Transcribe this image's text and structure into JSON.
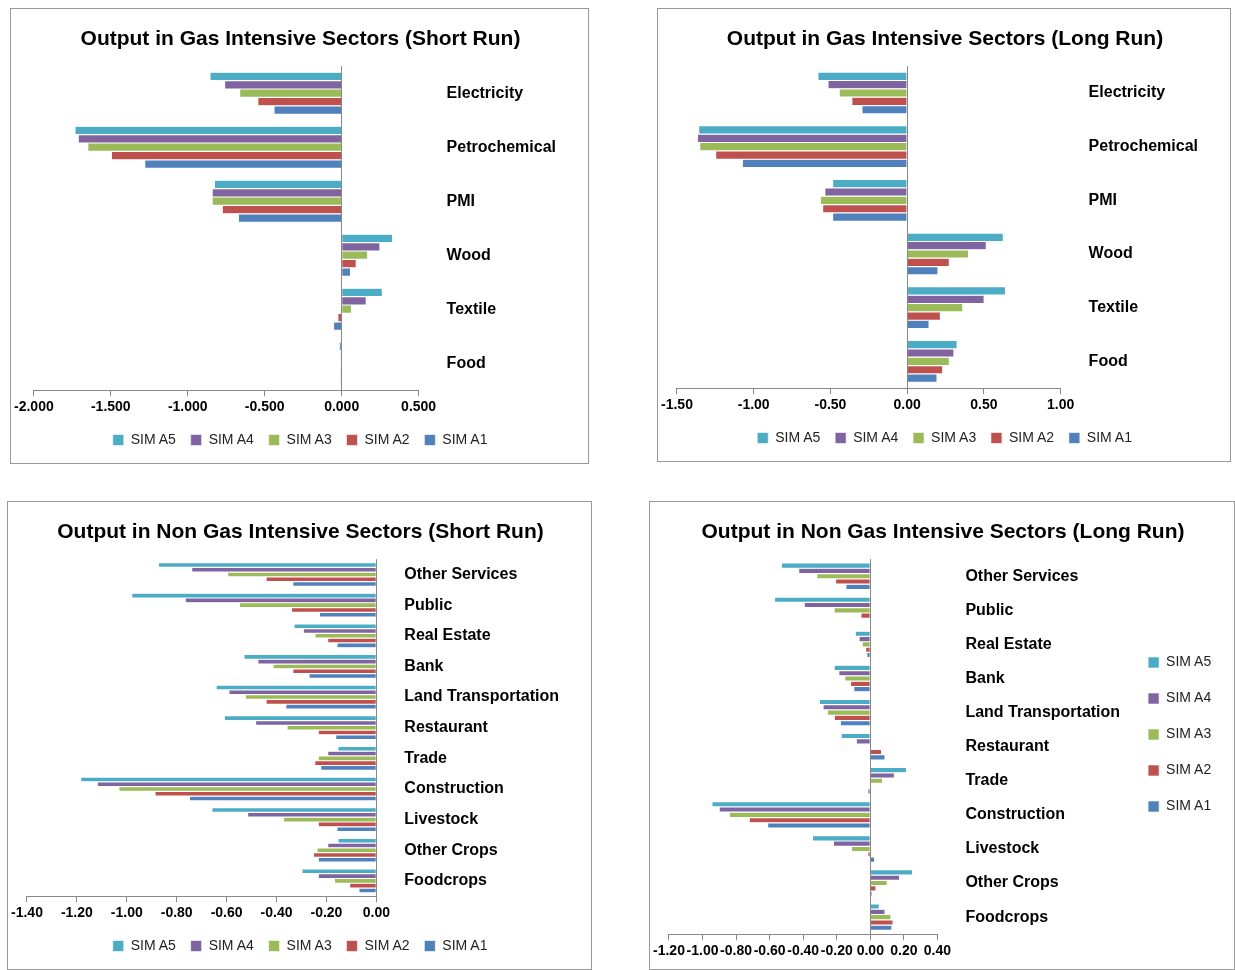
{
  "chart_data": [
    {
      "type": "bar",
      "orientation": "horizontal",
      "title": "Output in Gas Intensive Sectors (Short Run)",
      "categories": [
        "Electricity",
        "Petrochemical",
        "PMI",
        "Wood",
        "Textile",
        "Food"
      ],
      "legend": "bottom",
      "xlim": [
        -2,
        0.5
      ],
      "xticks": [
        {
          "value": -2,
          "label": "-2.000"
        },
        {
          "value": -1.5,
          "label": "-1.500"
        },
        {
          "value": -1,
          "label": "-1.000"
        },
        {
          "value": -0.5,
          "label": "-0.500"
        },
        {
          "value": 0,
          "label": "0.000"
        },
        {
          "value": 0.5,
          "label": "0.500"
        }
      ],
      "series": [
        {
          "name": "SIM A5",
          "color": "#4bacc6",
          "values": [
            -0.856,
            -1.733,
            -0.827,
            0.331,
            0.265,
            -0.016
          ]
        },
        {
          "name": "SIM A4",
          "color": "#8064a2",
          "values": [
            -0.761,
            -1.712,
            -0.842,
            0.249,
            0.16,
            -0.008
          ]
        },
        {
          "name": "SIM A3",
          "color": "#9bbb59",
          "values": [
            -0.663,
            -1.65,
            -0.842,
            0.169,
            0.064,
            -0.004
          ]
        },
        {
          "name": "SIM A2",
          "color": "#c0504d",
          "values": [
            -0.545,
            -1.496,
            -0.776,
            0.095,
            -0.025,
            -0.008
          ]
        },
        {
          "name": "SIM A1",
          "color": "#4f81bd",
          "values": [
            -0.44,
            -1.28,
            -0.671,
            0.058,
            -0.053,
            -0.008
          ]
        }
      ]
    },
    {
      "type": "bar",
      "orientation": "horizontal",
      "title": "Output in Gas Intensive Sectors (Long Run)",
      "categories": [
        "Electricity",
        "Petrochemical",
        "PMI",
        "Wood",
        "Textile",
        "Food"
      ],
      "legend": "bottom",
      "xlim": [
        -1.5,
        1
      ],
      "xticks": [
        {
          "value": -1.5,
          "label": "-1.50"
        },
        {
          "value": -1,
          "label": "-1.00"
        },
        {
          "value": -0.5,
          "label": "-0.50"
        },
        {
          "value": 0,
          "label": "0.00"
        },
        {
          "value": 0.5,
          "label": "0.50"
        },
        {
          "value": 1,
          "label": "1.00"
        }
      ],
      "series": [
        {
          "name": "SIM A5",
          "color": "#4bacc6",
          "values": [
            -0.582,
            -1.359,
            -0.486,
            0.627,
            0.641,
            0.326
          ]
        },
        {
          "name": "SIM A4",
          "color": "#8064a2",
          "values": [
            -0.516,
            -1.367,
            -0.537,
            0.516,
            0.502,
            0.305
          ]
        },
        {
          "name": "SIM A3",
          "color": "#9bbb59",
          "values": [
            -0.443,
            -1.352,
            -0.566,
            0.4,
            0.363,
            0.275
          ]
        },
        {
          "name": "SIM A2",
          "color": "#c0504d",
          "values": [
            -0.361,
            -1.248,
            -0.551,
            0.275,
            0.217,
            0.232
          ]
        },
        {
          "name": "SIM A1",
          "color": "#4f81bd",
          "values": [
            -0.295,
            -1.074,
            -0.486,
            0.201,
            0.143,
            0.195
          ]
        }
      ]
    },
    {
      "type": "bar",
      "orientation": "horizontal",
      "title": "Output in Non Gas Intensive Sectors (Short Run)",
      "categories": [
        "Other Services",
        "Public",
        "Real Estate",
        "Bank",
        "Land Transportation",
        "Restaurant",
        "Trade",
        "Construction",
        "Livestock",
        "Other Crops",
        "Foodcrops"
      ],
      "legend": "bottom",
      "xlim": [
        -1.4,
        0
      ],
      "xticks": [
        {
          "value": -1.4,
          "label": "-1.40"
        },
        {
          "value": -1.2,
          "label": "-1.20"
        },
        {
          "value": -1,
          "label": "-1.00"
        },
        {
          "value": -0.8,
          "label": "-0.80"
        },
        {
          "value": -0.6,
          "label": "-0.60"
        },
        {
          "value": -0.4,
          "label": "-0.40"
        },
        {
          "value": -0.2,
          "label": "-0.20"
        },
        {
          "value": 0,
          "label": "0.00"
        }
      ],
      "series": [
        {
          "name": "SIM A5",
          "color": "#4bacc6",
          "values": [
            -0.873,
            -0.98,
            -0.33,
            -0.531,
            -0.642,
            -0.609,
            -0.154,
            -1.185,
            -0.659,
            -0.154,
            -0.298
          ]
        },
        {
          "name": "SIM A4",
          "color": "#8064a2",
          "values": [
            -0.74,
            -0.766,
            -0.293,
            -0.475,
            -0.591,
            -0.484,
            -0.195,
            -1.118,
            -0.516,
            -0.195,
            -0.233
          ]
        },
        {
          "name": "SIM A3",
          "color": "#9bbb59",
          "values": [
            -0.596,
            -0.549,
            -0.246,
            -0.414,
            -0.525,
            -0.358,
            -0.233,
            -1.032,
            -0.372,
            -0.238,
            -0.168
          ]
        },
        {
          "name": "SIM A2",
          "color": "#c0504d",
          "values": [
            -0.442,
            -0.34,
            -0.195,
            -0.335,
            -0.442,
            -0.233,
            -0.247,
            -0.887,
            -0.233,
            -0.252,
            -0.107
          ]
        },
        {
          "name": "SIM A1",
          "color": "#4f81bd",
          "values": [
            -0.335,
            -0.228,
            -0.158,
            -0.27,
            -0.363,
            -0.163,
            -0.223,
            -0.749,
            -0.158,
            -0.233,
            -0.07
          ]
        }
      ]
    },
    {
      "type": "bar",
      "orientation": "horizontal",
      "title": "Output in Non Gas Intensive Sectors (Long Run)",
      "categories": [
        "Other Services",
        "Public",
        "Real Estate",
        "Bank",
        "Land Transportation",
        "Restaurant",
        "Trade",
        "Construction",
        "Livestock",
        "Other Crops",
        "Foodcrops"
      ],
      "legend": "right",
      "xlim": [
        -1.2,
        0.4
      ],
      "xticks": [
        {
          "value": -1.2,
          "label": "-1.20"
        },
        {
          "value": -1,
          "label": "-1.00"
        },
        {
          "value": -0.8,
          "label": "-0.80"
        },
        {
          "value": -0.6,
          "label": "-0.60"
        },
        {
          "value": -0.4,
          "label": "-0.40"
        },
        {
          "value": -0.2,
          "label": "-0.20"
        },
        {
          "value": 0,
          "label": "0.00"
        },
        {
          "value": 0.2,
          "label": "0.20"
        },
        {
          "value": 0.4,
          "label": "0.40"
        }
      ],
      "series": [
        {
          "name": "SIM A5",
          "color": "#4bacc6",
          "values": [
            -0.53,
            -0.571,
            -0.09,
            -0.216,
            -0.304,
            -0.174,
            0.216,
            -0.944,
            -0.345,
            0.252,
            0.054
          ]
        },
        {
          "name": "SIM A4",
          "color": "#8064a2",
          "values": [
            -0.427,
            -0.394,
            -0.067,
            -0.188,
            -0.282,
            -0.084,
            0.144,
            -0.901,
            -0.22,
            0.175,
            0.088
          ]
        },
        {
          "name": "SIM A3",
          "color": "#9bbb59",
          "values": [
            -0.319,
            -0.216,
            -0.049,
            -0.153,
            -0.256,
            0,
            0.073,
            -0.84,
            -0.112,
            0.101,
            0.123
          ]
        },
        {
          "name": "SIM A2",
          "color": "#c0504d",
          "values": [
            -0.207,
            -0.056,
            -0.028,
            -0.118,
            -0.215,
            0.067,
            0,
            -0.722,
            -0.015,
            0.034,
            0.136
          ]
        },
        {
          "name": "SIM A1",
          "color": "#4f81bd",
          "values": [
            -0.146,
            0,
            -0.021,
            -0.099,
            -0.179,
            0.088,
            -0.015,
            -0.612,
            0.026,
            0.011,
            0.129
          ]
        }
      ]
    }
  ]
}
